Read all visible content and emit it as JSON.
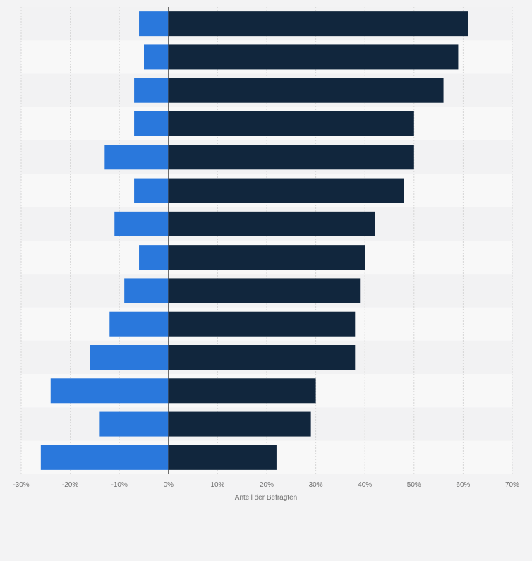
{
  "chart_data": {
    "type": "bar",
    "orientation": "horizontal",
    "categories": [
      "",
      "",
      "",
      "",
      "",
      "",
      "",
      "",
      "",
      "",
      "",
      "",
      "",
      ""
    ],
    "series": [
      {
        "values": [
          -6,
          -5,
          -7,
          -7,
          -13,
          -7,
          -11,
          -6,
          -9,
          -12,
          -16,
          -24,
          -14,
          -26
        ],
        "color": "#2a78dc"
      },
      {
        "values": [
          61,
          59,
          56,
          50,
          50,
          48,
          42,
          40,
          39,
          38,
          38,
          30,
          29,
          22
        ],
        "color": "#11263d"
      }
    ],
    "xlim": [
      -30,
      70
    ],
    "xticks": [
      "-30%",
      "-20%",
      "-10%",
      "0%",
      "10%",
      "20%",
      "30%",
      "40%",
      "50%",
      "60%",
      "70%"
    ],
    "xlabel": "Anteil der Befragten",
    "grid": true,
    "legend": "none"
  }
}
